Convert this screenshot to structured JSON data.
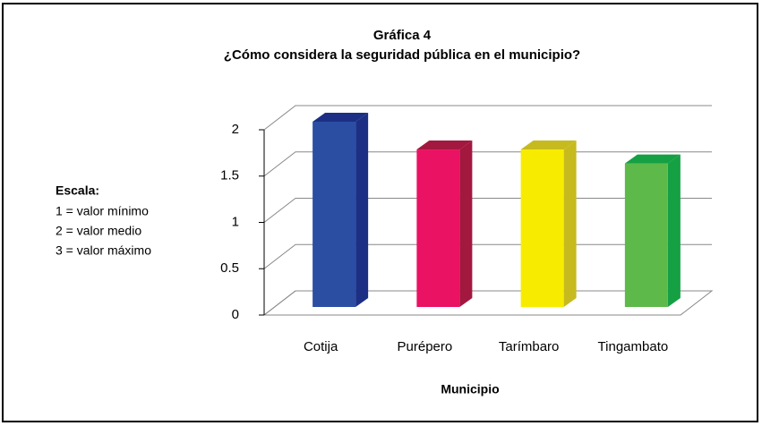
{
  "chart_data": {
    "type": "bar3d",
    "title": "Gráfica 4",
    "subtitle": "¿Cómo considera la seguridad pública  en el municipio?",
    "x_label": "Municipio",
    "notes": [
      "Escala:",
      "1 = valor mínimo",
      "2 = valor medio",
      "3 = valor máximo"
    ],
    "categories": [
      "Cotija",
      "Purépero",
      "Tarímbaro",
      "Tingambato"
    ],
    "values": [
      2,
      1.7,
      1.7,
      1.55
    ],
    "colors": [
      "#2b4ea3",
      "#ea1262",
      "#f7ec00",
      "#5db94a"
    ],
    "side_colors": [
      "#1c2f84",
      "#a3183f",
      "#c6ba1e",
      "#15a044"
    ],
    "ylim": [
      0,
      2
    ],
    "yticks": [
      0,
      0.5,
      1,
      1.5,
      2
    ],
    "grid": true
  }
}
